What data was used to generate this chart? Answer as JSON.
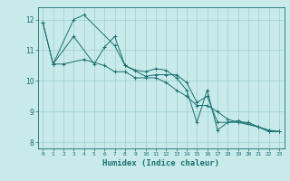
{
  "xlabel": "Humidex (Indice chaleur)",
  "bg_color": "#c8eaea",
  "grid_color": "#9ecece",
  "line_color": "#1a7070",
  "xlim": [
    -0.5,
    23.5
  ],
  "ylim": [
    7.8,
    12.4
  ],
  "yticks": [
    8,
    9,
    10,
    11,
    12
  ],
  "xticks": [
    0,
    1,
    2,
    3,
    4,
    5,
    6,
    7,
    8,
    9,
    10,
    11,
    12,
    13,
    14,
    15,
    16,
    17,
    18,
    19,
    20,
    21,
    22,
    23
  ],
  "lines": [
    {
      "x": [
        0,
        1,
        3,
        4,
        7,
        8,
        10,
        11,
        12,
        13,
        14,
        15,
        16,
        17,
        18,
        19,
        21,
        22,
        23
      ],
      "y": [
        11.9,
        10.55,
        12.0,
        12.15,
        11.15,
        10.5,
        10.15,
        10.2,
        10.2,
        10.2,
        9.95,
        9.3,
        9.5,
        8.65,
        8.65,
        8.7,
        8.5,
        8.35,
        8.35
      ]
    },
    {
      "x": [
        1,
        3,
        5,
        6,
        7,
        8,
        9,
        10,
        11,
        12,
        13,
        14,
        15,
        16,
        17,
        18,
        19,
        21,
        22,
        23
      ],
      "y": [
        10.55,
        11.45,
        10.55,
        11.1,
        11.45,
        10.5,
        10.35,
        10.3,
        10.4,
        10.35,
        10.1,
        9.7,
        8.65,
        9.7,
        8.4,
        8.65,
        8.65,
        8.5,
        8.35,
        8.35
      ]
    },
    {
      "x": [
        0,
        1,
        2,
        4,
        6,
        7,
        8,
        9,
        10,
        11,
        12,
        13,
        14,
        15,
        16,
        17,
        18,
        19,
        20,
        21,
        22,
        23
      ],
      "y": [
        11.9,
        10.55,
        10.55,
        10.7,
        10.5,
        10.3,
        10.3,
        10.1,
        10.1,
        10.1,
        9.95,
        9.7,
        9.5,
        9.2,
        9.2,
        9.0,
        8.75,
        8.65,
        8.65,
        8.5,
        8.4,
        8.35
      ]
    }
  ]
}
